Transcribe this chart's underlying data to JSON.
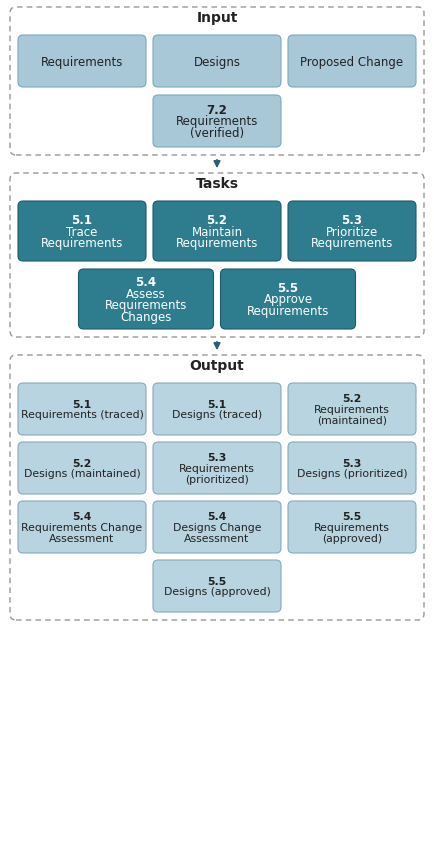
{
  "bg_color": "#ffffff",
  "input_title": "Input",
  "tasks_title": "Tasks",
  "output_title": "Output",
  "input_box_color": "#a8c8d8",
  "input_box_edge": "#7aaabb",
  "task_box_color": "#2d7d8e",
  "task_box_edge": "#1e5a6c",
  "output_box_color": "#b8d4e0",
  "output_box_edge": "#88aabc",
  "section_dash_color": "#999999",
  "arrow_color": "#2e5f6e",
  "text_dark": "#222222",
  "text_light": "#ffffff",
  "input_row0_texts": [
    "Requirements",
    "Designs",
    "Proposed Change"
  ],
  "input_row1_text": "7.2\nRequirements\n(verified)",
  "task_row0_texts": [
    "5.1\nTrace\nRequirements",
    "5.2\nMaintain\nRequirements",
    "5.3\nPrioritize\nRequirements"
  ],
  "task_row1_texts": [
    "5.4\nAssess\nRequirements\nChanges",
    "5.5\nApprove\nRequirements"
  ],
  "output_items": [
    {
      "text": "5.1\nRequirements (traced)",
      "row": 0,
      "col": 0
    },
    {
      "text": "5.1\nDesigns (traced)",
      "row": 0,
      "col": 1
    },
    {
      "text": "5.2\nRequirements\n(maintained)",
      "row": 0,
      "col": 2
    },
    {
      "text": "5.2\nDesigns (maintained)",
      "row": 1,
      "col": 0
    },
    {
      "text": "5.3\nRequirements\n(prioritized)",
      "row": 1,
      "col": 1
    },
    {
      "text": "5.3\nDesigns (prioritized)",
      "row": 1,
      "col": 2
    },
    {
      "text": "5.4\nRequirements Change\nAssessment",
      "row": 2,
      "col": 0
    },
    {
      "text": "5.4\nDesigns Change\nAssessment",
      "row": 2,
      "col": 1
    },
    {
      "text": "5.5\nRequirements\n(approved)",
      "row": 2,
      "col": 2
    },
    {
      "text": "5.5\nDesigns (approved)",
      "row": 3,
      "col": 1
    }
  ]
}
